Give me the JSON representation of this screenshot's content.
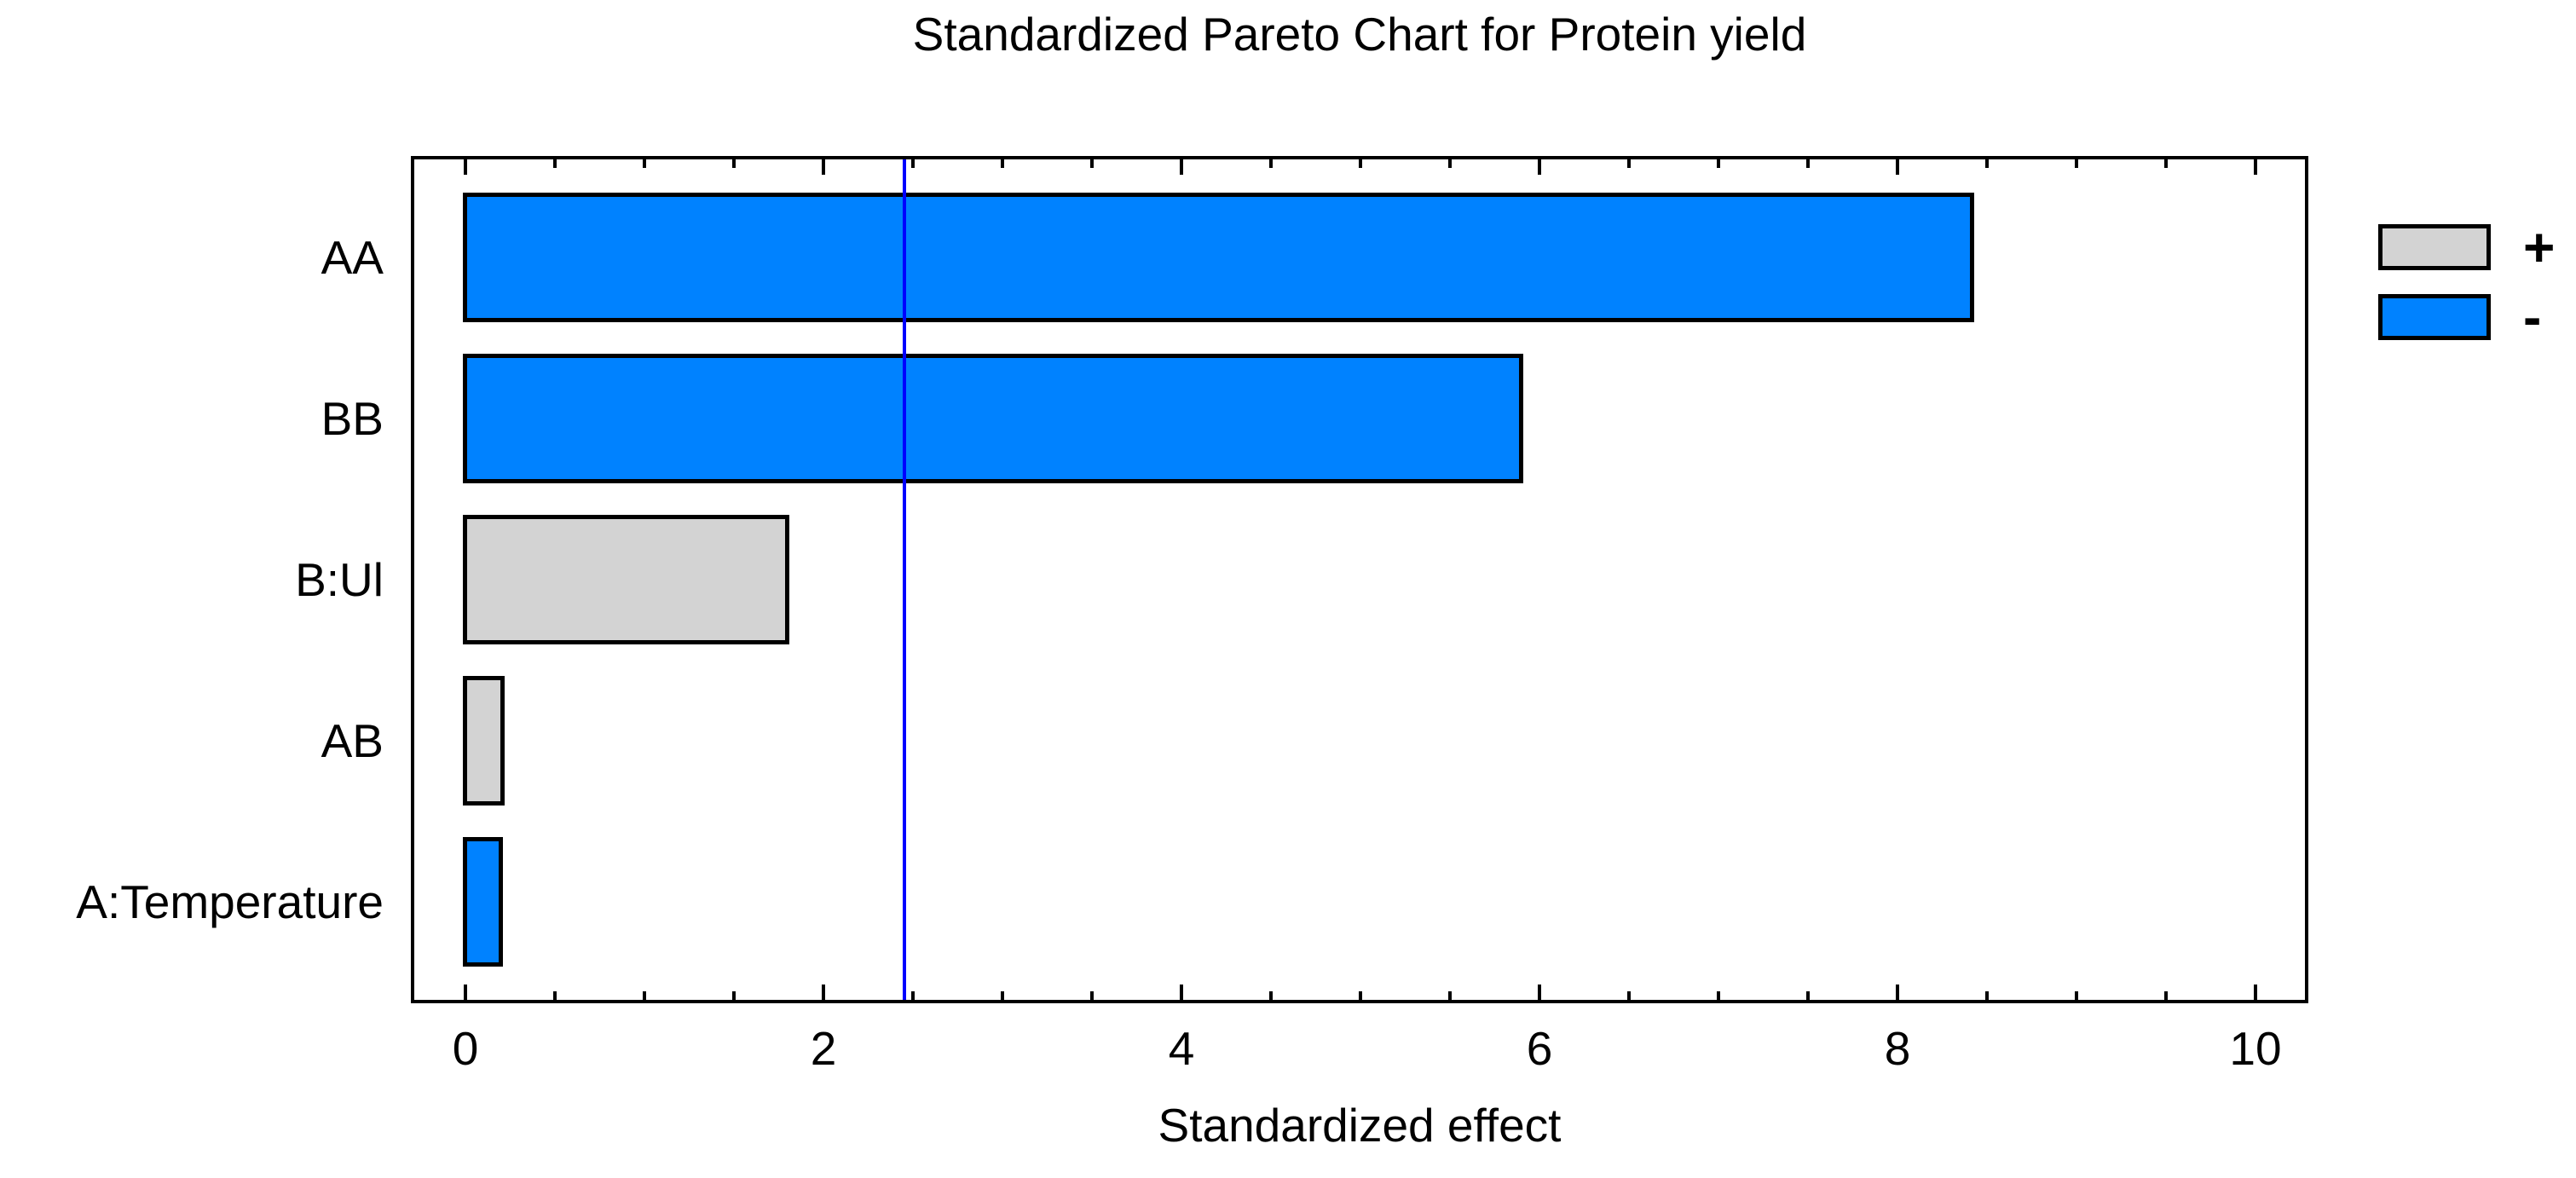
{
  "title": "Standardized Pareto Chart for Protein yield",
  "chart_data": {
    "type": "bar",
    "orientation": "horizontal",
    "title": "Standardized Pareto Chart for Protein yield",
    "xlabel": "Standardized effect",
    "ylabel": "",
    "categories": [
      "AA",
      "BB",
      "B:Ul",
      "AB",
      "A:Temperature"
    ],
    "values": [
      8.42,
      5.9,
      1.8,
      0.21,
      0.2
    ],
    "signs": [
      "-",
      "-",
      "+",
      "+",
      "-"
    ],
    "reference_line": 2.45,
    "xlim": [
      -0.3,
      10.4
    ],
    "xticks": [
      0,
      2,
      4,
      6,
      8,
      10
    ],
    "xtick_labels": [
      "0",
      "2",
      "4",
      "6",
      "8",
      "10"
    ],
    "minor_tick_step": 0.5,
    "grid": false,
    "legend_position": "right",
    "legend": [
      {
        "label": "+",
        "color": "#d3d3d3"
      },
      {
        "label": "-",
        "color": "#0082ff"
      }
    ]
  },
  "colors": {
    "positive_fill": "#d3d3d3",
    "negative_fill": "#0082ff",
    "reference_line": "#0000ff",
    "frame": "#000000",
    "background": "#ffffff"
  }
}
